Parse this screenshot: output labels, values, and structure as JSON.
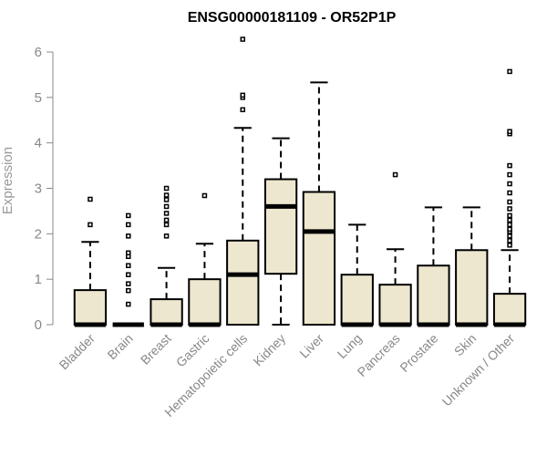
{
  "chart_data": {
    "type": "box",
    "title": "ENSG00000181109 - OR52P1P",
    "ylabel": "Expression",
    "xlabel": "",
    "ylim": [
      0,
      6
    ],
    "yticks": [
      0,
      1,
      2,
      3,
      4,
      5,
      6
    ],
    "categories": [
      "Bladder",
      "Brain",
      "Breast",
      "Gastric",
      "Hematopoietic cells",
      "Kidney",
      "Liver",
      "Lung",
      "Pancreas",
      "Prostate",
      "Skin",
      "Unknown / Other"
    ],
    "boxes": [
      {
        "q1": 0,
        "median": 0,
        "q3": 0.76,
        "whisker_low": 0,
        "whisker_high": 1.82,
        "outliers": [
          2.2,
          2.76
        ]
      },
      {
        "q1": 0,
        "median": 0,
        "q3": 0,
        "whisker_low": 0,
        "whisker_high": 0,
        "outliers": [
          0.45,
          0.75,
          0.9,
          1.1,
          1.3,
          1.5,
          1.58,
          1.95,
          2.2,
          2.4
        ]
      },
      {
        "q1": 0,
        "median": 0,
        "q3": 0.56,
        "whisker_low": 0,
        "whisker_high": 1.25,
        "outliers": [
          1.95,
          2.2,
          2.3,
          2.45,
          2.6,
          2.75,
          2.85,
          3.0
        ]
      },
      {
        "q1": 0,
        "median": 0,
        "q3": 1.0,
        "whisker_low": 0,
        "whisker_high": 1.78,
        "outliers": [
          2.84
        ]
      },
      {
        "q1": 0,
        "median": 1.1,
        "q3": 1.85,
        "whisker_low": 0,
        "whisker_high": 4.33,
        "outliers": [
          4.73,
          5.0,
          5.05,
          6.28
        ]
      },
      {
        "q1": 1.12,
        "median": 2.6,
        "q3": 3.2,
        "whisker_low": 0,
        "whisker_high": 4.1,
        "outliers": []
      },
      {
        "q1": 0,
        "median": 2.05,
        "q3": 2.92,
        "whisker_low": 0,
        "whisker_high": 5.33,
        "outliers": []
      },
      {
        "q1": 0,
        "median": 0,
        "q3": 1.1,
        "whisker_low": 0,
        "whisker_high": 2.2,
        "outliers": []
      },
      {
        "q1": 0,
        "median": 0,
        "q3": 0.88,
        "whisker_low": 0,
        "whisker_high": 1.66,
        "outliers": [
          3.3
        ]
      },
      {
        "q1": 0,
        "median": 0,
        "q3": 1.3,
        "whisker_low": 0,
        "whisker_high": 2.58,
        "outliers": []
      },
      {
        "q1": 0,
        "median": 0,
        "q3": 1.64,
        "whisker_low": 0,
        "whisker_high": 2.58,
        "outliers": []
      },
      {
        "q1": 0,
        "median": 0,
        "q3": 0.68,
        "whisker_low": 0,
        "whisker_high": 1.64,
        "outliers": [
          1.75,
          1.85,
          1.95,
          2.05,
          2.1,
          2.2,
          2.3,
          2.4,
          2.55,
          2.7,
          2.9,
          3.1,
          3.3,
          3.5,
          4.2,
          4.25,
          5.57
        ]
      }
    ],
    "grid": false,
    "legend": "none"
  },
  "colors": {
    "box_fill": "#ede7cf",
    "box_stroke": "#000000",
    "median": "#000000",
    "axis": "#888888"
  }
}
